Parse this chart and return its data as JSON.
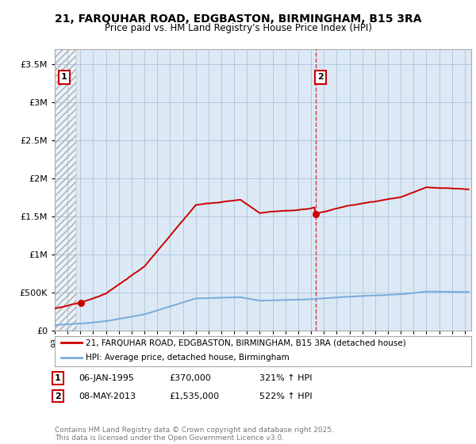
{
  "title": "21, FARQUHAR ROAD, EDGBASTON, BIRMINGHAM, B15 3RA",
  "subtitle": "Price paid vs. HM Land Registry's House Price Index (HPI)",
  "ytick_vals": [
    0,
    500000,
    1000000,
    1500000,
    2000000,
    2500000,
    3000000,
    3500000
  ],
  "ylim": [
    0,
    3700000
  ],
  "xlim": [
    1993.0,
    2025.5
  ],
  "house_color": "#cc0000",
  "hpi_color": "#7aaadd",
  "annotation1_date": "06-JAN-1995",
  "annotation1_price": "£370,000",
  "annotation1_hpi": "321% ↑ HPI",
  "annotation2_date": "08-MAY-2013",
  "annotation2_price": "£1,535,000",
  "annotation2_hpi": "522% ↑ HPI",
  "legend_house": "21, FARQUHAR ROAD, EDGBASTON, BIRMINGHAM, B15 3RA (detached house)",
  "legend_hpi": "HPI: Average price, detached house, Birmingham",
  "footer": "Contains HM Land Registry data © Crown copyright and database right 2025.\nThis data is licensed under the Open Government Licence v3.0.",
  "background_color": "#ffffff",
  "plot_bg": "#dce9f5",
  "grid_color": "#b0c8e0",
  "sale1_x": 1995.04,
  "sale1_y": 370000,
  "sale2_x": 2013.35,
  "sale2_y": 1535000
}
